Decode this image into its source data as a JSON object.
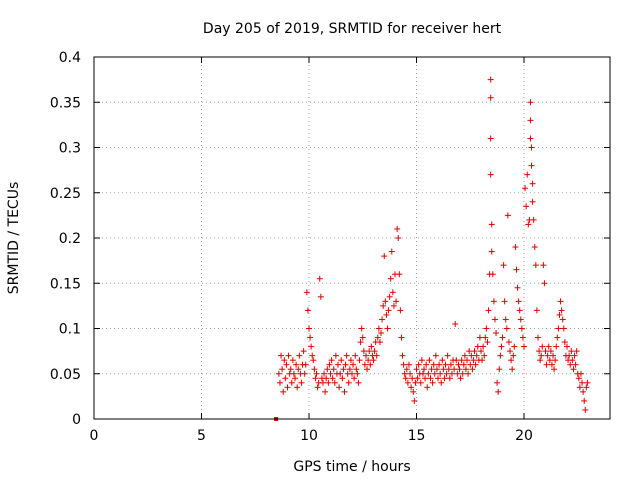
{
  "chart_data": {
    "type": "scatter",
    "title": "Day 205 of 2019, SRMTID for receiver hert",
    "xlabel": "GPS time / hours",
    "ylabel": "SRMTID / TECUs",
    "xlim": [
      0,
      24
    ],
    "ylim": [
      0,
      0.4
    ],
    "xticks": [
      0,
      5,
      10,
      15,
      20
    ],
    "xtick_labels": [
      "0",
      "5",
      "10",
      "15",
      "20"
    ],
    "yticks": [
      0,
      0.05,
      0.1,
      0.15,
      0.2,
      0.25,
      0.3,
      0.35,
      0.4
    ],
    "ytick_labels": [
      "0",
      "0.05",
      "0.1",
      "0.15",
      "0.2",
      "0.25",
      "0.3",
      "0.35",
      "0.4"
    ],
    "grid": true,
    "marker": "+",
    "color": "#e00000",
    "outlier_marker": {
      "x": 8.47,
      "y": 0.0,
      "shape": "square"
    },
    "series": [
      {
        "name": "SRMTID",
        "points": [
          [
            8.6,
            0.05
          ],
          [
            8.65,
            0.04
          ],
          [
            8.7,
            0.07
          ],
          [
            8.75,
            0.055
          ],
          [
            8.8,
            0.03
          ],
          [
            8.85,
            0.065
          ],
          [
            8.9,
            0.045
          ],
          [
            8.95,
            0.06
          ],
          [
            9.0,
            0.035
          ],
          [
            9.05,
            0.07
          ],
          [
            9.1,
            0.05
          ],
          [
            9.15,
            0.055
          ],
          [
            9.2,
            0.04
          ],
          [
            9.25,
            0.065
          ],
          [
            9.3,
            0.05
          ],
          [
            9.35,
            0.045
          ],
          [
            9.4,
            0.06
          ],
          [
            9.45,
            0.035
          ],
          [
            9.5,
            0.055
          ],
          [
            9.55,
            0.07
          ],
          [
            9.6,
            0.05
          ],
          [
            9.65,
            0.04
          ],
          [
            9.7,
            0.06
          ],
          [
            9.75,
            0.075
          ],
          [
            9.8,
            0.05
          ],
          [
            9.85,
            0.06
          ],
          [
            9.9,
            0.14
          ],
          [
            9.95,
            0.12
          ],
          [
            10.0,
            0.1
          ],
          [
            10.05,
            0.09
          ],
          [
            10.1,
            0.08
          ],
          [
            10.15,
            0.07
          ],
          [
            10.2,
            0.065
          ],
          [
            10.25,
            0.055
          ],
          [
            10.3,
            0.045
          ],
          [
            10.35,
            0.05
          ],
          [
            10.4,
            0.035
          ],
          [
            10.45,
            0.04
          ],
          [
            10.5,
            0.155
          ],
          [
            10.55,
            0.135
          ],
          [
            10.6,
            0.045
          ],
          [
            10.65,
            0.04
          ],
          [
            10.7,
            0.05
          ],
          [
            10.75,
            0.03
          ],
          [
            10.8,
            0.045
          ],
          [
            10.85,
            0.055
          ],
          [
            10.9,
            0.04
          ],
          [
            10.95,
            0.06
          ],
          [
            11.0,
            0.05
          ],
          [
            11.05,
            0.065
          ],
          [
            11.1,
            0.045
          ],
          [
            11.15,
            0.055
          ],
          [
            11.2,
            0.04
          ],
          [
            11.25,
            0.07
          ],
          [
            11.3,
            0.05
          ],
          [
            11.35,
            0.06
          ],
          [
            11.4,
            0.035
          ],
          [
            11.45,
            0.05
          ],
          [
            11.5,
            0.065
          ],
          [
            11.55,
            0.045
          ],
          [
            11.6,
            0.055
          ],
          [
            11.65,
            0.03
          ],
          [
            11.7,
            0.06
          ],
          [
            11.75,
            0.07
          ],
          [
            11.8,
            0.05
          ],
          [
            11.85,
            0.04
          ],
          [
            11.9,
            0.055
          ],
          [
            11.95,
            0.065
          ],
          [
            12.0,
            0.05
          ],
          [
            12.05,
            0.06
          ],
          [
            12.1,
            0.045
          ],
          [
            12.15,
            0.07
          ],
          [
            12.2,
            0.055
          ],
          [
            12.25,
            0.05
          ],
          [
            12.3,
            0.04
          ],
          [
            12.35,
            0.065
          ],
          [
            12.4,
            0.085
          ],
          [
            12.45,
            0.1
          ],
          [
            12.5,
            0.09
          ],
          [
            12.55,
            0.075
          ],
          [
            12.6,
            0.06
          ],
          [
            12.65,
            0.07
          ],
          [
            12.7,
            0.055
          ],
          [
            12.75,
            0.065
          ],
          [
            12.8,
            0.075
          ],
          [
            12.85,
            0.06
          ],
          [
            12.9,
            0.08
          ],
          [
            12.95,
            0.07
          ],
          [
            13.0,
            0.065
          ],
          [
            13.05,
            0.075
          ],
          [
            13.1,
            0.085
          ],
          [
            13.15,
            0.07
          ],
          [
            13.2,
            0.09
          ],
          [
            13.25,
            0.1
          ],
          [
            13.3,
            0.085
          ],
          [
            13.35,
            0.095
          ],
          [
            13.4,
            0.11
          ],
          [
            13.45,
            0.125
          ],
          [
            13.5,
            0.18
          ],
          [
            13.55,
            0.13
          ],
          [
            13.6,
            0.115
          ],
          [
            13.65,
            0.1
          ],
          [
            13.7,
            0.12
          ],
          [
            13.75,
            0.135
          ],
          [
            13.8,
            0.155
          ],
          [
            13.85,
            0.185
          ],
          [
            13.9,
            0.14
          ],
          [
            13.95,
            0.125
          ],
          [
            14.0,
            0.16
          ],
          [
            14.05,
            0.13
          ],
          [
            14.1,
            0.21
          ],
          [
            14.15,
            0.2
          ],
          [
            14.2,
            0.16
          ],
          [
            14.25,
            0.12
          ],
          [
            14.3,
            0.09
          ],
          [
            14.35,
            0.07
          ],
          [
            14.4,
            0.06
          ],
          [
            14.45,
            0.05
          ],
          [
            14.5,
            0.045
          ],
          [
            14.55,
            0.055
          ],
          [
            14.6,
            0.04
          ],
          [
            14.65,
            0.06
          ],
          [
            14.7,
            0.05
          ],
          [
            14.75,
            0.035
          ],
          [
            14.8,
            0.045
          ],
          [
            14.85,
            0.03
          ],
          [
            14.9,
            0.02
          ],
          [
            14.95,
            0.04
          ],
          [
            15.0,
            0.055
          ],
          [
            15.05,
            0.045
          ],
          [
            15.1,
            0.06
          ],
          [
            15.15,
            0.05
          ],
          [
            15.2,
            0.04
          ],
          [
            15.25,
            0.065
          ],
          [
            15.3,
            0.05
          ],
          [
            15.35,
            0.055
          ],
          [
            15.4,
            0.045
          ],
          [
            15.45,
            0.06
          ],
          [
            15.5,
            0.035
          ],
          [
            15.55,
            0.05
          ],
          [
            15.6,
            0.065
          ],
          [
            15.65,
            0.045
          ],
          [
            15.7,
            0.055
          ],
          [
            15.75,
            0.04
          ],
          [
            15.8,
            0.06
          ],
          [
            15.85,
            0.05
          ],
          [
            15.9,
            0.07
          ],
          [
            15.95,
            0.055
          ],
          [
            16.0,
            0.045
          ],
          [
            16.05,
            0.06
          ],
          [
            16.1,
            0.05
          ],
          [
            16.15,
            0.04
          ],
          [
            16.2,
            0.065
          ],
          [
            16.25,
            0.055
          ],
          [
            16.3,
            0.045
          ],
          [
            16.35,
            0.06
          ],
          [
            16.4,
            0.05
          ],
          [
            16.45,
            0.07
          ],
          [
            16.5,
            0.055
          ],
          [
            16.55,
            0.045
          ],
          [
            16.6,
            0.06
          ],
          [
            16.65,
            0.05
          ],
          [
            16.7,
            0.065
          ],
          [
            16.75,
            0.055
          ],
          [
            16.8,
            0.105
          ],
          [
            16.85,
            0.065
          ],
          [
            16.9,
            0.05
          ],
          [
            16.95,
            0.06
          ],
          [
            17.0,
            0.055
          ],
          [
            17.05,
            0.045
          ],
          [
            17.1,
            0.065
          ],
          [
            17.15,
            0.05
          ],
          [
            17.2,
            0.06
          ],
          [
            17.25,
            0.07
          ],
          [
            17.3,
            0.055
          ],
          [
            17.35,
            0.065
          ],
          [
            17.4,
            0.05
          ],
          [
            17.45,
            0.075
          ],
          [
            17.5,
            0.06
          ],
          [
            17.55,
            0.07
          ],
          [
            17.6,
            0.055
          ],
          [
            17.65,
            0.065
          ],
          [
            17.7,
            0.075
          ],
          [
            17.75,
            0.06
          ],
          [
            17.8,
            0.07
          ],
          [
            17.85,
            0.08
          ],
          [
            17.9,
            0.065
          ],
          [
            17.95,
            0.09
          ],
          [
            18.0,
            0.075
          ],
          [
            18.05,
            0.065
          ],
          [
            18.1,
            0.08
          ],
          [
            18.15,
            0.07
          ],
          [
            18.2,
            0.09
          ],
          [
            18.25,
            0.1
          ],
          [
            18.3,
            0.085
          ],
          [
            18.35,
            0.12
          ],
          [
            18.4,
            0.16
          ],
          [
            18.45,
            0.375
          ],
          [
            18.45,
            0.355
          ],
          [
            18.45,
            0.31
          ],
          [
            18.45,
            0.27
          ],
          [
            18.5,
            0.215
          ],
          [
            18.5,
            0.185
          ],
          [
            18.55,
            0.16
          ],
          [
            18.6,
            0.13
          ],
          [
            18.65,
            0.11
          ],
          [
            18.7,
            0.095
          ],
          [
            18.75,
            0.04
          ],
          [
            18.8,
            0.03
          ],
          [
            18.85,
            0.055
          ],
          [
            18.9,
            0.07
          ],
          [
            18.95,
            0.08
          ],
          [
            19.0,
            0.09
          ],
          [
            19.05,
            0.17
          ],
          [
            19.1,
            0.13
          ],
          [
            19.15,
            0.11
          ],
          [
            19.2,
            0.1
          ],
          [
            19.25,
            0.225
          ],
          [
            19.3,
            0.085
          ],
          [
            19.35,
            0.075
          ],
          [
            19.4,
            0.065
          ],
          [
            19.45,
            0.055
          ],
          [
            19.5,
            0.07
          ],
          [
            19.55,
            0.08
          ],
          [
            19.6,
            0.19
          ],
          [
            19.65,
            0.165
          ],
          [
            19.7,
            0.145
          ],
          [
            19.75,
            0.13
          ],
          [
            19.8,
            0.12
          ],
          [
            19.85,
            0.11
          ],
          [
            19.9,
            0.1
          ],
          [
            19.95,
            0.09
          ],
          [
            20.0,
            0.08
          ],
          [
            20.05,
            0.255
          ],
          [
            20.1,
            0.235
          ],
          [
            20.15,
            0.27
          ],
          [
            20.2,
            0.215
          ],
          [
            20.25,
            0.22
          ],
          [
            20.3,
            0.35
          ],
          [
            20.3,
            0.33
          ],
          [
            20.3,
            0.31
          ],
          [
            20.35,
            0.3
          ],
          [
            20.35,
            0.28
          ],
          [
            20.4,
            0.26
          ],
          [
            20.4,
            0.24
          ],
          [
            20.45,
            0.22
          ],
          [
            20.5,
            0.19
          ],
          [
            20.55,
            0.17
          ],
          [
            20.6,
            0.12
          ],
          [
            20.65,
            0.09
          ],
          [
            20.7,
            0.075
          ],
          [
            20.75,
            0.065
          ],
          [
            20.8,
            0.07
          ],
          [
            20.85,
            0.08
          ],
          [
            20.9,
            0.17
          ],
          [
            20.95,
            0.15
          ],
          [
            21.0,
            0.075
          ],
          [
            21.05,
            0.06
          ],
          [
            21.1,
            0.07
          ],
          [
            21.15,
            0.08
          ],
          [
            21.2,
            0.065
          ],
          [
            21.25,
            0.075
          ],
          [
            21.3,
            0.06
          ],
          [
            21.35,
            0.07
          ],
          [
            21.4,
            0.055
          ],
          [
            21.45,
            0.065
          ],
          [
            21.5,
            0.08
          ],
          [
            21.55,
            0.09
          ],
          [
            21.6,
            0.1
          ],
          [
            21.65,
            0.115
          ],
          [
            21.7,
            0.13
          ],
          [
            21.75,
            0.12
          ],
          [
            21.8,
            0.11
          ],
          [
            21.85,
            0.1
          ],
          [
            21.9,
            0.085
          ],
          [
            21.95,
            0.07
          ],
          [
            22.0,
            0.08
          ],
          [
            22.05,
            0.065
          ],
          [
            22.1,
            0.07
          ],
          [
            22.15,
            0.06
          ],
          [
            22.2,
            0.075
          ],
          [
            22.25,
            0.065
          ],
          [
            22.3,
            0.055
          ],
          [
            22.35,
            0.07
          ],
          [
            22.4,
            0.06
          ],
          [
            22.45,
            0.075
          ],
          [
            22.5,
            0.05
          ],
          [
            22.55,
            0.045
          ],
          [
            22.6,
            0.035
          ],
          [
            22.65,
            0.05
          ],
          [
            22.7,
            0.04
          ],
          [
            22.75,
            0.03
          ],
          [
            22.8,
            0.02
          ],
          [
            22.85,
            0.01
          ],
          [
            22.9,
            0.035
          ],
          [
            22.95,
            0.04
          ]
        ]
      }
    ]
  }
}
